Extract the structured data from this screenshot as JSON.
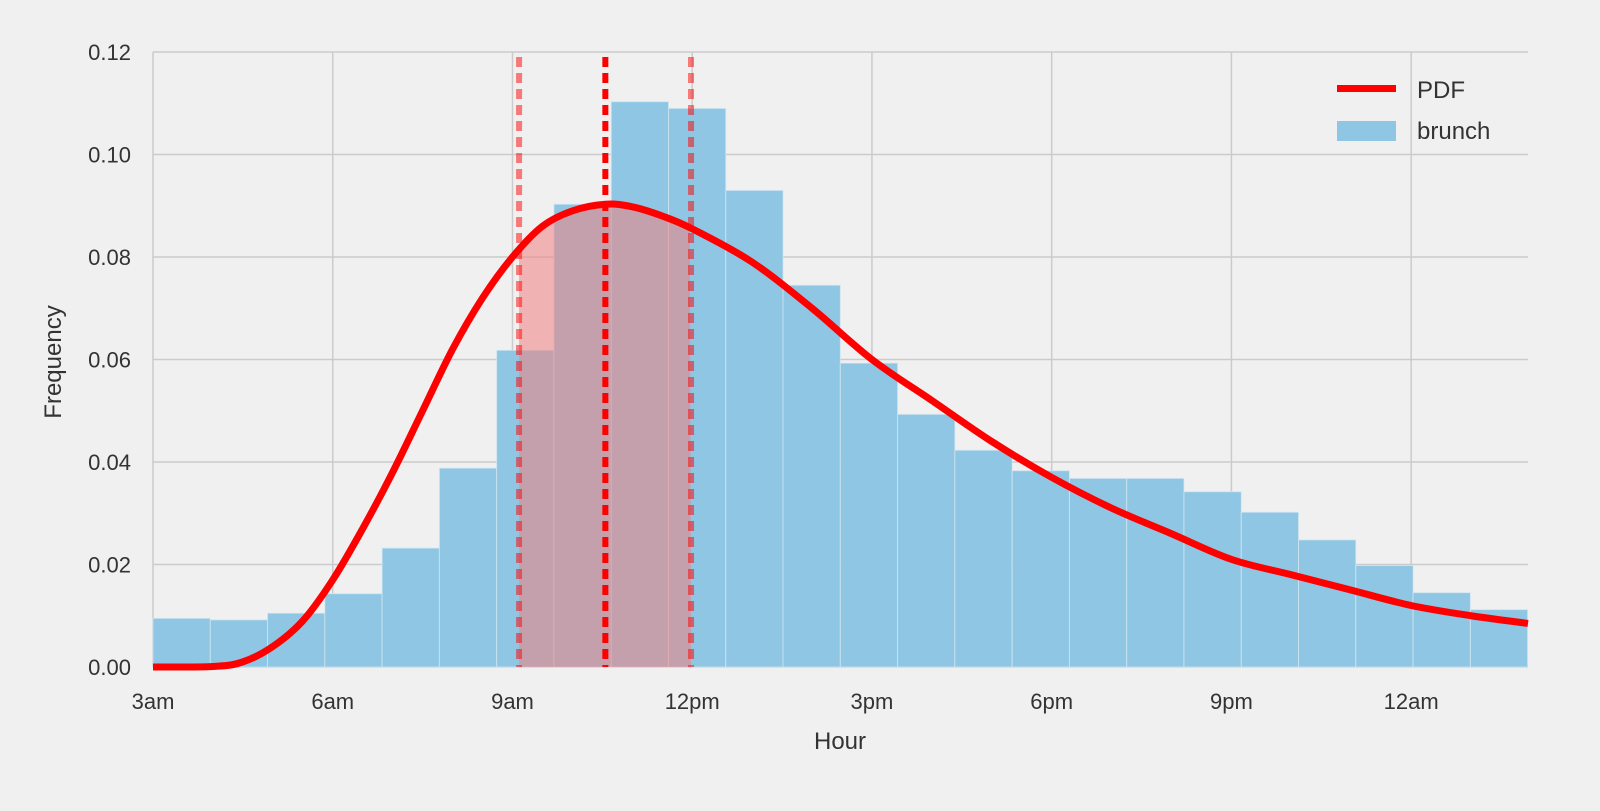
{
  "chart_data": {
    "type": "bar",
    "title": "",
    "xlabel": "Hour",
    "ylabel": "Frequency",
    "xlim": [
      3,
      25.95
    ],
    "ylim": [
      0,
      0.12
    ],
    "grid": true,
    "legend_position": "top-right",
    "x_ticks": [
      {
        "value": 3,
        "label": "3am"
      },
      {
        "value": 6,
        "label": "6am"
      },
      {
        "value": 9,
        "label": "9am"
      },
      {
        "value": 12,
        "label": "12pm"
      },
      {
        "value": 15,
        "label": "3pm"
      },
      {
        "value": 18,
        "label": "6pm"
      },
      {
        "value": 21,
        "label": "9pm"
      },
      {
        "value": 24,
        "label": "12am"
      }
    ],
    "y_ticks": [
      {
        "value": 0,
        "label": "0.00"
      },
      {
        "value": 0.02,
        "label": "0.02"
      },
      {
        "value": 0.04,
        "label": "0.04"
      },
      {
        "value": 0.06,
        "label": "0.06"
      },
      {
        "value": 0.08,
        "label": "0.08"
      },
      {
        "value": 0.1,
        "label": "0.10"
      },
      {
        "value": 0.12,
        "label": "0.12"
      }
    ],
    "histogram": {
      "name": "brunch",
      "color": "#8ec6e3",
      "bin_start": 3,
      "bin_width": 0.956,
      "values": [
        0.0095,
        0.0092,
        0.0105,
        0.0143,
        0.0232,
        0.0388,
        0.0618,
        0.0903,
        0.1103,
        0.109,
        0.093,
        0.0745,
        0.0593,
        0.0493,
        0.0423,
        0.0383,
        0.0368,
        0.0368,
        0.0342,
        0.0302,
        0.0248,
        0.0198,
        0.0145,
        0.0112
      ]
    },
    "pdf": {
      "name": "PDF",
      "color": "#ff0000",
      "x": [
        3,
        4,
        4.5,
        5,
        5.5,
        6,
        6.5,
        7,
        7.5,
        8,
        8.5,
        9,
        9.5,
        10,
        10.55,
        11,
        11.5,
        12,
        13,
        14,
        15,
        16,
        17,
        18,
        19,
        20,
        21,
        22,
        23,
        24,
        25,
        25.95
      ],
      "y": [
        0,
        0.0001,
        0.001,
        0.004,
        0.009,
        0.017,
        0.027,
        0.038,
        0.05,
        0.062,
        0.072,
        0.08,
        0.086,
        0.089,
        0.0903,
        0.0898,
        0.088,
        0.0855,
        0.079,
        0.07,
        0.06,
        0.052,
        0.044,
        0.037,
        0.031,
        0.026,
        0.021,
        0.018,
        0.015,
        0.012,
        0.01,
        0.0085
      ]
    },
    "vlines": [
      {
        "name": "mean",
        "x": 10.55,
        "style": "dashed",
        "alpha": 1.0
      },
      {
        "name": "lower-bound",
        "x": 9.11,
        "style": "dashed",
        "alpha": 0.5
      },
      {
        "name": "upper-bound",
        "x": 11.98,
        "style": "dashed",
        "alpha": 0.5
      }
    ],
    "shaded_interval": {
      "from": 9.11,
      "to": 11.98,
      "color": "#f08080",
      "alpha": 0.55
    },
    "legend": [
      {
        "label": "PDF",
        "kind": "line",
        "color": "#ff0000"
      },
      {
        "label": "brunch",
        "kind": "patch",
        "color": "#8ec6e3"
      }
    ]
  }
}
